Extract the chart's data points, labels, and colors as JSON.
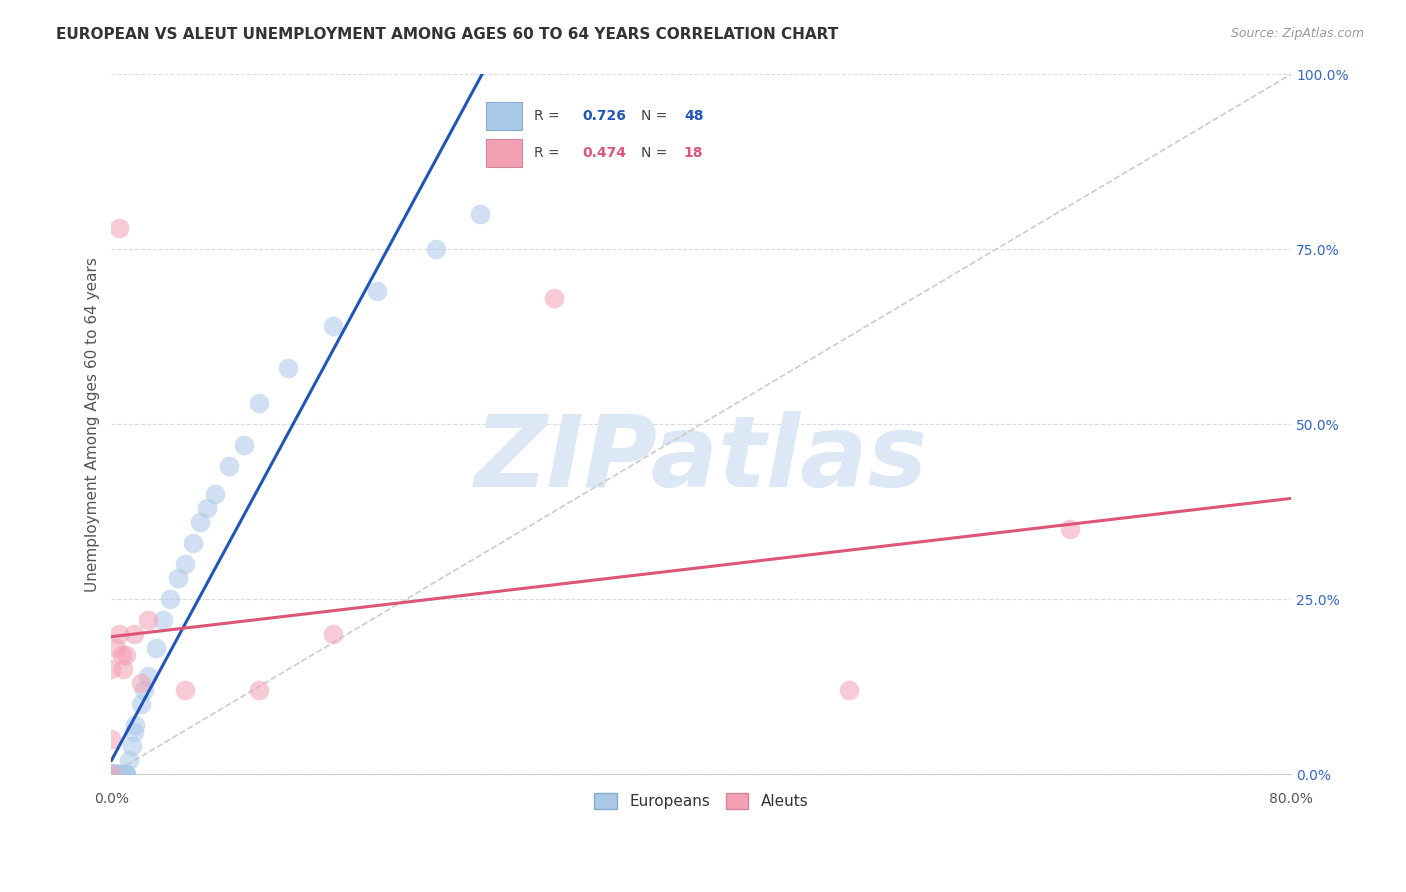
{
  "title": "EUROPEAN VS ALEUT UNEMPLOYMENT AMONG AGES 60 TO 64 YEARS CORRELATION CHART",
  "source": "Source: ZipAtlas.com",
  "ylabel": "Unemployment Among Ages 60 to 64 years",
  "european_color": "#aac8e8",
  "aleut_color": "#f4a0b5",
  "european_line_color": "#2255bb",
  "aleut_line_color": "#dd5577",
  "diag_color": "#cccccc",
  "watermark_text": "ZIPatlas",
  "watermark_color": "#dce8f5",
  "background_color": "#ffffff",
  "grid_color": "#dddddd",
  "ytick_color": "#3366cc",
  "xlim": [
    0.0,
    0.8
  ],
  "ylim": [
    0.0,
    1.0
  ],
  "y_ticks": [
    0.0,
    0.25,
    0.5,
    0.75,
    1.0
  ],
  "y_labels": [
    "0.0%",
    "25.0%",
    "50.0%",
    "75.0%",
    "100.0%"
  ],
  "x_left_label": "0.0%",
  "x_right_label": "80.0%",
  "R_european": "0.726",
  "N_european": "48",
  "R_aleut": "0.474",
  "N_aleut": "18",
  "eu_x": [
    0.0,
    0.0,
    0.0,
    0.0,
    0.0,
    0.0,
    0.001,
    0.001,
    0.002,
    0.002,
    0.002,
    0.003,
    0.003,
    0.003,
    0.004,
    0.004,
    0.005,
    0.005,
    0.006,
    0.007,
    0.008,
    0.009,
    0.01,
    0.01,
    0.012,
    0.014,
    0.015,
    0.016,
    0.02,
    0.022,
    0.025,
    0.03,
    0.035,
    0.04,
    0.045,
    0.05,
    0.055,
    0.06,
    0.065,
    0.07,
    0.08,
    0.09,
    0.1,
    0.12,
    0.15,
    0.18,
    0.22,
    0.25
  ],
  "eu_y": [
    0.0,
    0.0,
    0.0,
    0.0,
    0.0,
    0.0,
    0.0,
    0.0,
    0.0,
    0.0,
    0.0,
    0.0,
    0.0,
    0.0,
    0.0,
    0.0,
    0.0,
    0.0,
    0.0,
    0.0,
    0.0,
    0.0,
    0.0,
    0.0,
    0.02,
    0.04,
    0.06,
    0.07,
    0.1,
    0.12,
    0.14,
    0.18,
    0.22,
    0.25,
    0.28,
    0.3,
    0.33,
    0.36,
    0.38,
    0.4,
    0.44,
    0.47,
    0.53,
    0.58,
    0.64,
    0.69,
    0.75,
    0.8
  ],
  "al_x": [
    0.0,
    0.0,
    0.0,
    0.003,
    0.005,
    0.005,
    0.007,
    0.008,
    0.01,
    0.015,
    0.02,
    0.025,
    0.05,
    0.1,
    0.15,
    0.3,
    0.5,
    0.65
  ],
  "al_y": [
    0.0,
    0.05,
    0.15,
    0.18,
    0.78,
    0.2,
    0.17,
    0.15,
    0.17,
    0.2,
    0.13,
    0.22,
    0.12,
    0.12,
    0.2,
    0.68,
    0.12,
    0.35
  ]
}
